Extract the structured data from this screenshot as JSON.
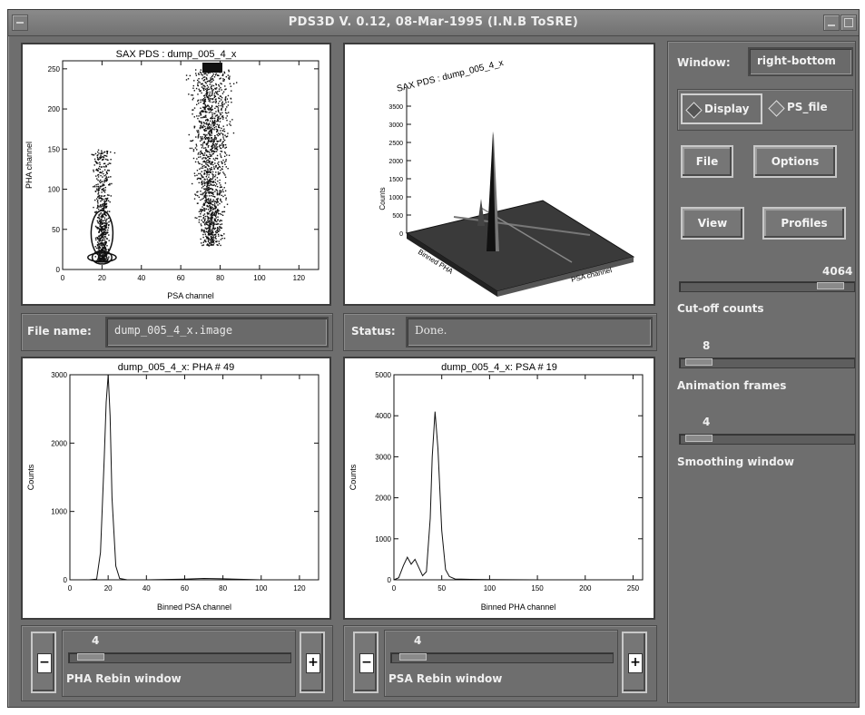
{
  "window": {
    "title": "PDS3D V. 0.12, 08-Mar-1995 (I.N.B ToSRE)"
  },
  "top_left_plot": {
    "title": "SAX PDS : dump_005_4_x",
    "xlabel": "PSA channel",
    "ylabel": "PHA channel",
    "xticks": [
      "0",
      "20",
      "40",
      "60",
      "80",
      "100",
      "120"
    ],
    "yticks": [
      "0",
      "50",
      "100",
      "150",
      "200",
      "250"
    ]
  },
  "top_right_plot": {
    "title": "SAX PDS : dump_005_4_x",
    "zlabel": "Counts",
    "zticks": [
      "0",
      "500",
      "1000",
      "1500",
      "2000",
      "2500",
      "3000",
      "3500"
    ],
    "ylabel": "Binned PHA",
    "xlabel": "PSA channel"
  },
  "file_row": {
    "label": "File name:",
    "value": "dump_005_4_x.image"
  },
  "status_row": {
    "label": "Status:",
    "value": "Done."
  },
  "bottom_left_plot": {
    "title": "dump_005_4_x: PHA # 49",
    "xlabel": "Binned PSA channel",
    "ylabel": "Counts",
    "xticks": [
      "0",
      "20",
      "40",
      "60",
      "80",
      "100",
      "120"
    ],
    "yticks": [
      "0",
      "1000",
      "2000",
      "3000"
    ]
  },
  "bottom_right_plot": {
    "title": "dump_005_4_x: PSA # 19",
    "xlabel": "Binned PHA channel",
    "ylabel": "Counts",
    "xticks": [
      "0",
      "50",
      "100",
      "150",
      "200",
      "250"
    ],
    "yticks": [
      "0",
      "1000",
      "2000",
      "3000",
      "4000",
      "5000"
    ]
  },
  "right_panel": {
    "window_label": "Window:",
    "window_value": "right-bottom",
    "radio_display": "Display",
    "radio_ps_file": "PS_file",
    "radio_selected": "Display",
    "btn_file": "File",
    "btn_options": "Options",
    "btn_view": "View",
    "btn_profiles": "Profiles",
    "cutoff_value": "4064",
    "cutoff_fraction": 0.93,
    "cutoff_label": "Cut-off counts",
    "animation_value": "8",
    "animation_fraction": 0.04,
    "animation_label": "Animation frames",
    "smoothing_value": "4",
    "smoothing_fraction": 0.04,
    "smoothing_label": "Smoothing window"
  },
  "pha_rebin": {
    "value": "4",
    "fraction": 0.04,
    "label": "PHA Rebin window",
    "minus": "−",
    "plus": "+"
  },
  "psa_rebin": {
    "value": "4",
    "fraction": 0.04,
    "label": "PSA Rebin window",
    "minus": "−",
    "plus": "+"
  },
  "chart_data": [
    {
      "type": "scatter",
      "title": "SAX PDS : dump_005_4_x",
      "xlabel": "PSA channel",
      "ylabel": "PHA channel",
      "xlim": [
        0,
        130
      ],
      "ylim": [
        0,
        260
      ],
      "clusters": [
        {
          "x_center": 20,
          "y_range": [
            10,
            150
          ]
        },
        {
          "x_center": 75,
          "y_range": [
            30,
            250
          ]
        }
      ]
    },
    {
      "type": "line",
      "title": "dump_005_4_x: PHA # 49",
      "xlabel": "Binned PSA channel",
      "ylabel": "Counts",
      "xlim": [
        0,
        130
      ],
      "ylim": [
        0,
        3000
      ],
      "x": [
        0,
        10,
        14,
        16,
        18,
        19,
        20,
        21,
        22,
        24,
        26,
        30,
        40,
        60,
        70,
        80,
        100,
        120,
        130
      ],
      "y": [
        0,
        0,
        10,
        400,
        1800,
        2600,
        3000,
        2400,
        1200,
        200,
        20,
        0,
        0,
        10,
        20,
        15,
        0,
        0,
        0
      ]
    },
    {
      "type": "line",
      "title": "dump_005_4_x: PSA # 19",
      "xlabel": "Binned PHA channel",
      "ylabel": "Counts",
      "xlim": [
        0,
        260
      ],
      "ylim": [
        0,
        5000
      ],
      "x": [
        0,
        5,
        10,
        14,
        18,
        22,
        26,
        30,
        34,
        38,
        40,
        43,
        46,
        50,
        54,
        58,
        64,
        80,
        100,
        150,
        200,
        260
      ],
      "y": [
        0,
        50,
        350,
        550,
        380,
        500,
        300,
        100,
        200,
        1500,
        3000,
        4100,
        3200,
        1200,
        250,
        80,
        20,
        10,
        5,
        0,
        0,
        0
      ]
    }
  ]
}
